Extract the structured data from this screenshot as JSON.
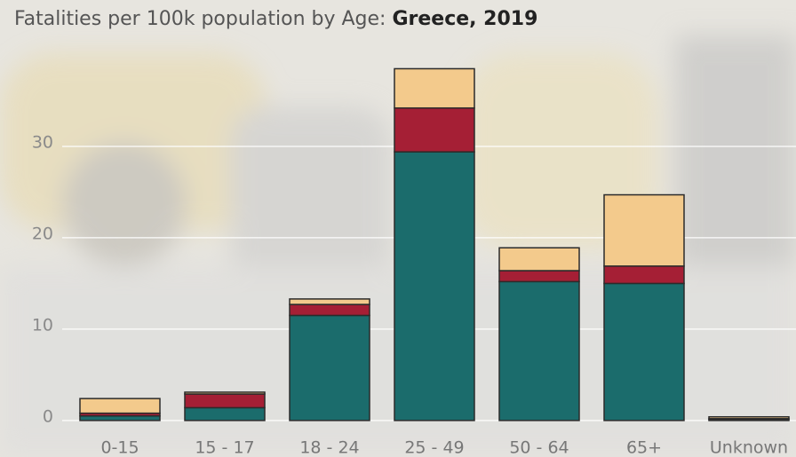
{
  "chart_data": {
    "type": "stacked-bar",
    "title": "Fatalities per 100k population by Age:",
    "subject": "Greece,  2019",
    "categories": [
      "0-15",
      "15 - 17",
      "18 - 24",
      "25 - 49",
      "50 - 64",
      "65+",
      "Unknown"
    ],
    "series": [
      {
        "color": "#1b6c6c",
        "values": [
          0.5,
          1.4,
          11.5,
          29.4,
          15.2,
          15.0,
          0.1
        ]
      },
      {
        "color": "#a51f35",
        "values": [
          0.3,
          1.5,
          1.2,
          4.8,
          1.2,
          1.9,
          0.1
        ]
      },
      {
        "color": "#f3ca8c",
        "values": [
          1.6,
          0.2,
          0.6,
          4.3,
          2.5,
          7.8,
          0.2
        ]
      }
    ],
    "ylim": [
      -0.5,
      40
    ],
    "yticks": [
      0,
      10,
      20,
      30
    ],
    "grid": true
  }
}
